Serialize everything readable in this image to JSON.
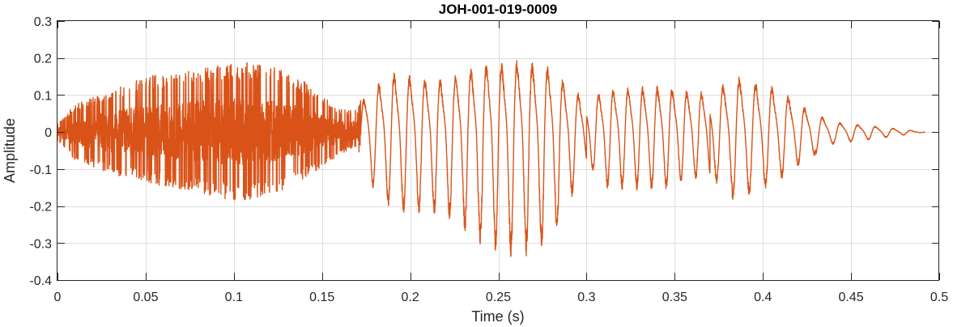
{
  "chart_data": {
    "type": "line",
    "title": "JOH-001-019-0009",
    "xlabel": "Time (s)",
    "ylabel": "Amplitude",
    "xlim": [
      0,
      0.5
    ],
    "ylim": [
      -0.4,
      0.3
    ],
    "grid": true,
    "x_ticks": [
      0,
      0.05,
      0.1,
      0.15,
      0.2,
      0.25,
      0.3,
      0.35,
      0.4,
      0.45,
      0.5
    ],
    "x_tick_labels": [
      "0",
      "0.05",
      "0.1",
      "0.15",
      "0.2",
      "0.25",
      "0.3",
      "0.35",
      "0.4",
      "0.45",
      "0.5"
    ],
    "y_ticks": [
      -0.4,
      -0.3,
      -0.2,
      -0.1,
      0,
      0.1,
      0.2,
      0.3
    ],
    "y_tick_labels": [
      "-0.4",
      "-0.3",
      "-0.2",
      "-0.1",
      "0",
      "0.1",
      "0.2",
      "0.3"
    ],
    "series": [
      {
        "color": "#d95319",
        "duration": 0.492,
        "envelope": [
          {
            "x": 0.0,
            "upper": 0.02,
            "lower": -0.02
          },
          {
            "x": 0.01,
            "upper": 0.06,
            "lower": -0.06
          },
          {
            "x": 0.03,
            "upper": 0.09,
            "lower": -0.09
          },
          {
            "x": 0.05,
            "upper": 0.12,
            "lower": -0.11
          },
          {
            "x": 0.08,
            "upper": 0.14,
            "lower": -0.13
          },
          {
            "x": 0.1,
            "upper": 0.15,
            "lower": -0.15
          },
          {
            "x": 0.12,
            "upper": 0.15,
            "lower": -0.14
          },
          {
            "x": 0.14,
            "upper": 0.11,
            "lower": -0.1
          },
          {
            "x": 0.16,
            "upper": 0.05,
            "lower": -0.05
          },
          {
            "x": 0.17,
            "upper": 0.05,
            "lower": -0.03
          },
          {
            "x": 0.175,
            "upper": 0.12,
            "lower": -0.12
          },
          {
            "x": 0.19,
            "upper": 0.18,
            "lower": -0.2
          },
          {
            "x": 0.22,
            "upper": 0.16,
            "lower": -0.21
          },
          {
            "x": 0.24,
            "upper": 0.21,
            "lower": -0.28
          },
          {
            "x": 0.26,
            "upper": 0.22,
            "lower": -0.32
          },
          {
            "x": 0.28,
            "upper": 0.2,
            "lower": -0.28
          },
          {
            "x": 0.29,
            "upper": 0.14,
            "lower": -0.18
          },
          {
            "x": 0.3,
            "upper": 0.1,
            "lower": -0.08
          },
          {
            "x": 0.31,
            "upper": 0.13,
            "lower": -0.14
          },
          {
            "x": 0.34,
            "upper": 0.14,
            "lower": -0.15
          },
          {
            "x": 0.37,
            "upper": 0.12,
            "lower": -0.11
          },
          {
            "x": 0.385,
            "upper": 0.17,
            "lower": -0.18
          },
          {
            "x": 0.41,
            "upper": 0.13,
            "lower": -0.12
          },
          {
            "x": 0.425,
            "upper": 0.07,
            "lower": -0.07
          },
          {
            "x": 0.44,
            "upper": 0.03,
            "lower": -0.03
          },
          {
            "x": 0.46,
            "upper": 0.02,
            "lower": -0.02
          },
          {
            "x": 0.492,
            "upper": 0.0,
            "lower": 0.0
          }
        ]
      }
    ]
  }
}
